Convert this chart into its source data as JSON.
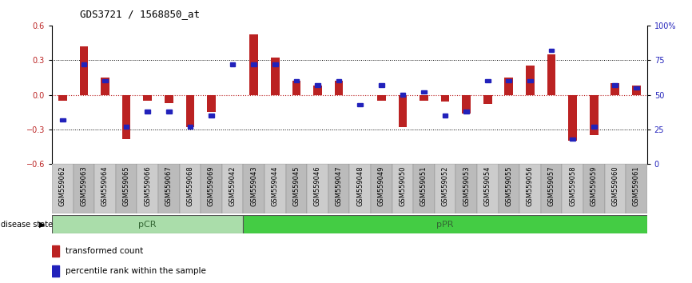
{
  "title": "GDS3721 / 1568850_at",
  "samples": [
    "GSM559062",
    "GSM559063",
    "GSM559064",
    "GSM559065",
    "GSM559066",
    "GSM559067",
    "GSM559068",
    "GSM559069",
    "GSM559042",
    "GSM559043",
    "GSM559044",
    "GSM559045",
    "GSM559046",
    "GSM559047",
    "GSM559048",
    "GSM559049",
    "GSM559050",
    "GSM559051",
    "GSM559052",
    "GSM559053",
    "GSM559054",
    "GSM559055",
    "GSM559056",
    "GSM559057",
    "GSM559058",
    "GSM559059",
    "GSM559060",
    "GSM559061"
  ],
  "red_bars": [
    -0.05,
    0.42,
    0.15,
    -0.38,
    -0.05,
    -0.07,
    -0.28,
    -0.15,
    0.0,
    0.52,
    0.32,
    0.12,
    0.08,
    0.12,
    0.0,
    -0.05,
    -0.28,
    -0.05,
    -0.06,
    -0.16,
    -0.08,
    0.15,
    0.25,
    0.35,
    -0.4,
    -0.35,
    0.1,
    0.08
  ],
  "blue_vals": [
    32,
    72,
    60,
    27,
    38,
    38,
    27,
    35,
    72,
    72,
    72,
    60,
    57,
    60,
    43,
    57,
    50,
    52,
    35,
    38,
    60,
    60,
    60,
    82,
    18,
    27,
    57,
    55
  ],
  "pCR_count": 9,
  "ylim": [
    -0.6,
    0.6
  ],
  "right_ylim": [
    0,
    100
  ],
  "right_yticks": [
    0,
    25,
    50,
    75,
    100
  ],
  "left_yticks": [
    -0.6,
    -0.3,
    0,
    0.3,
    0.6
  ],
  "hline_dotted": [
    -0.3,
    0.3
  ],
  "bar_color": "#bb2222",
  "blue_color": "#2222bb",
  "pCR_color": "#aaddaa",
  "pPR_color": "#44cc44",
  "pCR_label": "pCR",
  "pPR_label": "pPR",
  "disease_state_label": "disease state",
  "legend_red": "transformed count",
  "legend_blue": "percentile rank within the sample",
  "bg_color": "#ffffff",
  "title_fontsize": 9,
  "tick_label_fontsize": 6
}
